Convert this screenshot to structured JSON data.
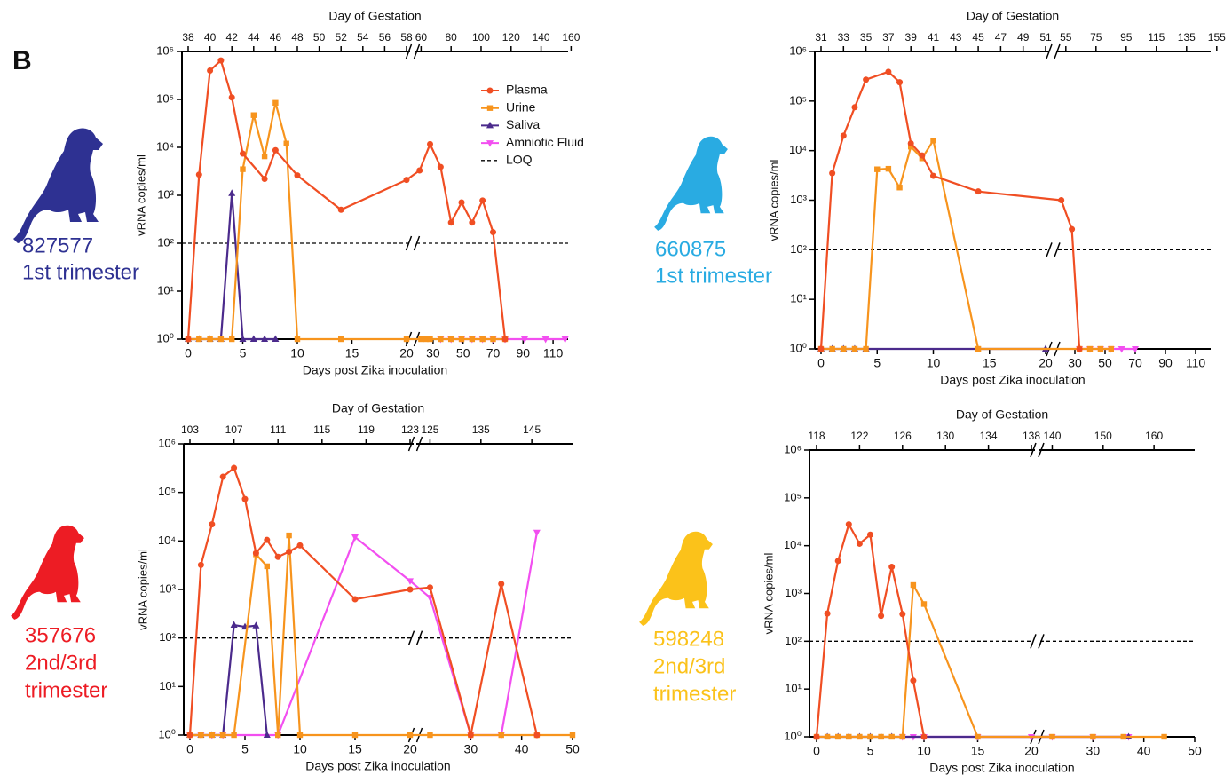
{
  "panel_label": "B",
  "chart_data": [
    {
      "type": "line",
      "top_label": "Day of Gestation",
      "x_label": "Days post Zika inoculation",
      "y_label": "vRNA copies/ml",
      "subject": {
        "id": "827577",
        "group": [
          "1st trimester"
        ],
        "color": "#2e3192"
      },
      "log_y": true,
      "ylim": [
        1,
        1000000
      ],
      "yticks": [
        {
          "value": 1,
          "label": "10⁰"
        },
        {
          "value": 10,
          "label": "10¹"
        },
        {
          "value": 100,
          "label": "10²"
        },
        {
          "value": 1000,
          "label": "10³"
        },
        {
          "value": 10000,
          "label": "10⁴"
        },
        {
          "value": 100000,
          "label": "10⁵"
        },
        {
          "value": 1000000,
          "label": "10⁶"
        }
      ],
      "xlims": [
        [
          0,
          20
        ],
        [
          20,
          120
        ]
      ],
      "xticks": [
        [
          0,
          5,
          10,
          15,
          20
        ],
        [
          30,
          50,
          70,
          90,
          110
        ]
      ],
      "top_offset": 38,
      "top_xticks": [
        [
          38,
          40,
          42,
          44,
          46,
          48,
          50,
          52,
          54,
          56,
          58
        ],
        [
          60,
          80,
          100,
          120,
          140,
          160
        ]
      ],
      "legend": "upper right",
      "loq": {
        "name": "LOQ",
        "value": 100,
        "color": "#000000"
      },
      "series": [
        {
          "name": "Plasma",
          "color": "#f04e23",
          "marker": "circle",
          "x": [
            0,
            1,
            2,
            3,
            4,
            5,
            7,
            8,
            10,
            14,
            20,
            21,
            28,
            35,
            42,
            49,
            56,
            63,
            70,
            78
          ],
          "values": [
            1,
            2700,
            400000,
            650000,
            110000,
            7400,
            2200,
            8700,
            2600,
            500,
            2100,
            3300,
            11700,
            3900,
            270,
            710,
            270,
            780,
            170,
            1
          ]
        },
        {
          "name": "Urine",
          "color": "#f7941d",
          "marker": "square",
          "x": [
            0,
            1,
            2,
            3,
            4,
            5,
            6,
            7,
            8,
            9,
            10,
            14,
            20,
            22,
            25,
            28,
            35,
            42,
            49,
            56,
            63,
            70,
            78
          ],
          "values": [
            1,
            1,
            1,
            1,
            1,
            3500,
            47000,
            6500,
            85000,
            12000,
            1,
            1,
            1,
            1,
            1,
            1,
            1,
            1,
            1,
            1,
            1,
            1,
            1
          ]
        },
        {
          "name": "Saliva",
          "color": "#4b2a8c",
          "marker": "triangle-up",
          "x": [
            0,
            1,
            2,
            3,
            4,
            5,
            6,
            7,
            8
          ],
          "values": [
            1,
            1,
            1,
            1,
            1100,
            1,
            1,
            1,
            1
          ]
        },
        {
          "name": "Amniotic Fluid",
          "color": "#f24ff0",
          "marker": "triangle-down",
          "x": [
            35,
            42,
            49,
            56,
            63,
            70,
            78,
            91,
            105,
            118
          ],
          "values": [
            1,
            1,
            1,
            1,
            1,
            1,
            1,
            1,
            1,
            1
          ]
        }
      ]
    },
    {
      "type": "line",
      "top_label": "Day of Gestation",
      "x_label": "Days post Zika inoculation",
      "y_label": "vRNA copies/ml",
      "subject": {
        "id": "660875",
        "group": [
          "1st trimester"
        ],
        "color": "#29abe2"
      },
      "log_y": true,
      "ylim": [
        1,
        1000000
      ],
      "yticks": [
        {
          "value": 1,
          "label": "10⁰"
        },
        {
          "value": 10,
          "label": "10¹"
        },
        {
          "value": 100,
          "label": "10²"
        },
        {
          "value": 1000,
          "label": "10³"
        },
        {
          "value": 10000,
          "label": "10⁴"
        },
        {
          "value": 100000,
          "label": "10⁵"
        },
        {
          "value": 1000000,
          "label": "10⁶"
        }
      ],
      "xlims": [
        [
          0,
          20
        ],
        [
          20,
          120
        ]
      ],
      "xticks": [
        [
          0,
          5,
          10,
          15,
          20
        ],
        [
          30,
          50,
          70,
          90,
          110
        ]
      ],
      "top_offset": 31,
      "top_xticks": [
        [
          31,
          33,
          35,
          37,
          39,
          41,
          43,
          45,
          47,
          49,
          51
        ],
        [
          55,
          75,
          95,
          115,
          135,
          155
        ]
      ],
      "loq": {
        "value": 100,
        "color": "#000000"
      },
      "series": [
        {
          "color": "#f04e23",
          "marker": "circle",
          "x": [
            0,
            1,
            2,
            3,
            4,
            6,
            7,
            8,
            9,
            10,
            14,
            21,
            28,
            33
          ],
          "values": [
            1,
            3500,
            20000,
            75000,
            270000,
            390000,
            240000,
            14000,
            8000,
            3100,
            1500,
            1000,
            260,
            1
          ]
        },
        {
          "color": "#f7941d",
          "marker": "square",
          "x": [
            0,
            1,
            2,
            3,
            4,
            5,
            6,
            7,
            8,
            9,
            10,
            14,
            33,
            40,
            47,
            54
          ],
          "values": [
            1,
            1,
            1,
            1,
            1,
            4200,
            4300,
            1800,
            12000,
            7000,
            16000,
            1,
            1,
            1,
            1,
            1
          ]
        },
        {
          "color": "#4b2a8c",
          "marker": "triangle-up",
          "x": [
            0,
            1,
            2,
            3,
            4,
            20
          ],
          "values": [
            1,
            1,
            1,
            1,
            1,
            1
          ]
        },
        {
          "color": "#f24ff0",
          "marker": "triangle-down",
          "x": [
            33,
            40,
            47,
            54,
            61,
            70
          ],
          "values": [
            1,
            1,
            1,
            1,
            1,
            1
          ]
        }
      ]
    },
    {
      "type": "line",
      "top_label": "Day of Gestation",
      "x_label": "Days post Zika inoculation",
      "y_label": "vRNA copies/ml",
      "subject": {
        "id": "357676",
        "group": [
          "2nd/3rd",
          "trimester"
        ],
        "color": "#ed1c24"
      },
      "log_y": true,
      "ylim": [
        1,
        1000000
      ],
      "yticks": [
        {
          "value": 1,
          "label": "10⁰"
        },
        {
          "value": 10,
          "label": "10¹"
        },
        {
          "value": 100,
          "label": "10²"
        },
        {
          "value": 1000,
          "label": "10³"
        },
        {
          "value": 10000,
          "label": "10⁴"
        },
        {
          "value": 100000,
          "label": "10⁵"
        },
        {
          "value": 1000000,
          "label": "10⁶"
        }
      ],
      "xlims": [
        [
          0,
          20
        ],
        [
          20,
          50
        ]
      ],
      "xticks": [
        [
          0,
          5,
          10,
          15,
          20
        ],
        [
          30,
          40,
          50
        ]
      ],
      "top_offset": 103,
      "top_xticks": [
        [
          103,
          107,
          111,
          115,
          119,
          123
        ],
        [
          125,
          135,
          145
        ]
      ],
      "loq": {
        "value": 100,
        "color": "#000000"
      },
      "series": [
        {
          "color": "#f04e23",
          "marker": "circle",
          "x": [
            0,
            1,
            2,
            3,
            4,
            5,
            6,
            7,
            8,
            9,
            10,
            15,
            20,
            22,
            30,
            36,
            43
          ],
          "values": [
            1,
            3200,
            22000,
            210000,
            320000,
            73000,
            5600,
            10500,
            4700,
            6000,
            8100,
            630,
            1000,
            1100,
            1,
            1300,
            1
          ]
        },
        {
          "color": "#f7941d",
          "marker": "square",
          "x": [
            0,
            1,
            2,
            3,
            4,
            6,
            7,
            8,
            9,
            10,
            15,
            20,
            22,
            30,
            36,
            43,
            50
          ],
          "values": [
            1,
            1,
            1,
            1,
            1,
            5300,
            3000,
            1,
            13000,
            1,
            1,
            1,
            1,
            1,
            1,
            1,
            1
          ]
        },
        {
          "color": "#4b2a8c",
          "marker": "triangle-up",
          "x": [
            0,
            1,
            2,
            3,
            4,
            5,
            6,
            7
          ],
          "values": [
            1,
            1,
            1,
            1,
            185,
            170,
            180,
            1
          ]
        },
        {
          "color": "#f24ff0",
          "marker": "triangle-down",
          "x": [
            0,
            1,
            2,
            3,
            8,
            15,
            20,
            22,
            30,
            36,
            43
          ],
          "values": [
            1,
            1,
            1,
            1,
            1,
            12000,
            1500,
            680,
            1,
            1,
            15000
          ]
        }
      ]
    },
    {
      "type": "line",
      "top_label": "Day of Gestation",
      "x_label": "Days post Zika inoculation",
      "y_label": "vRNA copies/ml",
      "subject": {
        "id": "598248",
        "group": [
          "2nd/3rd",
          "trimester"
        ],
        "color": "#fbc21a"
      },
      "log_y": true,
      "ylim": [
        1,
        1000000
      ],
      "yticks": [
        {
          "value": 1,
          "label": "10⁰"
        },
        {
          "value": 10,
          "label": "10¹"
        },
        {
          "value": 100,
          "label": "10²"
        },
        {
          "value": 1000,
          "label": "10³"
        },
        {
          "value": 10000,
          "label": "10⁴"
        },
        {
          "value": 100000,
          "label": "10⁵"
        },
        {
          "value": 1000000,
          "label": "10⁶"
        }
      ],
      "xlims": [
        [
          0,
          20
        ],
        [
          20,
          50
        ]
      ],
      "xticks": [
        [
          0,
          5,
          10,
          15,
          20
        ],
        [
          30,
          40,
          50
        ]
      ],
      "top_offset": 118,
      "top_xticks": [
        [
          118,
          122,
          126,
          130,
          134,
          138
        ],
        [
          140,
          150,
          160
        ]
      ],
      "loq": {
        "value": 100,
        "color": "#000000"
      },
      "series": [
        {
          "color": "#f04e23",
          "marker": "circle",
          "x": [
            0,
            1,
            2,
            3,
            4,
            5,
            6,
            7,
            8,
            9,
            10
          ],
          "values": [
            1,
            380,
            4800,
            28000,
            11000,
            17000,
            340,
            3600,
            370,
            15,
            1
          ]
        },
        {
          "color": "#f7941d",
          "marker": "square",
          "x": [
            0,
            1,
            2,
            3,
            4,
            5,
            6,
            7,
            8,
            9,
            10,
            15,
            22,
            30,
            36,
            44
          ],
          "values": [
            1,
            1,
            1,
            1,
            1,
            1,
            1,
            1,
            1,
            1500,
            600,
            1,
            1,
            1,
            1,
            1
          ]
        },
        {
          "color": "#4b2a8c",
          "marker": "triangle-up",
          "x": [
            0,
            1,
            2,
            3,
            4,
            5,
            6,
            7,
            8,
            37
          ],
          "values": [
            1,
            1,
            1,
            1,
            1,
            1,
            1,
            1,
            1,
            1
          ]
        },
        {
          "color": "#f24ff0",
          "marker": "triangle-down",
          "x": [
            8,
            9,
            10,
            15,
            20,
            22,
            30,
            37
          ],
          "values": [
            1,
            1,
            1,
            1,
            1,
            1,
            1,
            1
          ]
        }
      ]
    }
  ]
}
